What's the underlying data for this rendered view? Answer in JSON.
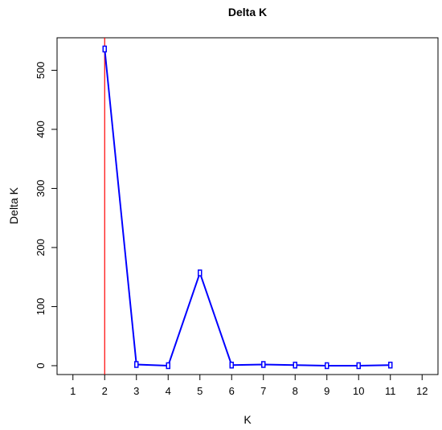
{
  "chart_data": {
    "type": "line",
    "title": "Delta K",
    "xlabel": "K",
    "ylabel": "Delta K",
    "xlim": [
      0.5,
      12.5
    ],
    "ylim": [
      -15,
      555
    ],
    "x_ticks": [
      1,
      2,
      3,
      4,
      5,
      6,
      7,
      8,
      9,
      10,
      11,
      12
    ],
    "y_ticks": [
      0,
      100,
      200,
      300,
      400,
      500
    ],
    "x_tick_labels": [
      "1",
      "2",
      "3",
      "4",
      "5",
      "6",
      "7",
      "8",
      "9",
      "10",
      "11",
      "12"
    ],
    "y_tick_labels": [
      "0",
      "100",
      "200",
      "300",
      "400",
      "500"
    ],
    "grid": false,
    "reference_line": {
      "x": 2,
      "color": "#ff0000"
    },
    "series": [
      {
        "color": "#0000ff",
        "x": [
          2,
          3,
          4,
          5,
          6,
          7,
          8,
          9,
          10,
          11
        ],
        "y": [
          536,
          2,
          0,
          157,
          1,
          2,
          1,
          0,
          0,
          1
        ]
      }
    ]
  }
}
